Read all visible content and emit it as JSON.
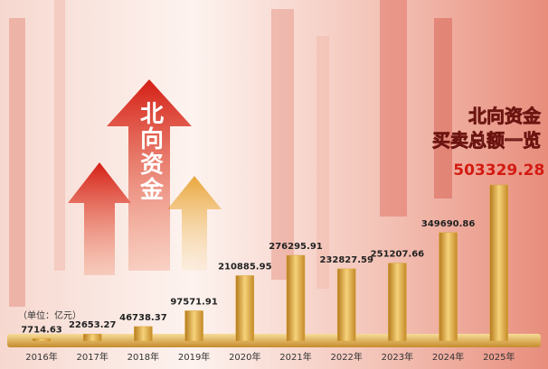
{
  "chart_data": {
    "type": "bar",
    "title": "北向资金",
    "subtitle": "买卖总额一览",
    "annotation": "北向资金",
    "unit_note": "（单位：亿元）",
    "categories": [
      "2016年",
      "2017年",
      "2018年",
      "2019年",
      "2020年",
      "2021年",
      "2022年",
      "2023年",
      "2024年",
      "2025年"
    ],
    "values": [
      7714.63,
      22653.27,
      46738.37,
      97571.91,
      210885.95,
      276295.91,
      232827.59,
      251207.66,
      349690.86,
      503329.28
    ],
    "color": "#d9a43a"
  }
}
